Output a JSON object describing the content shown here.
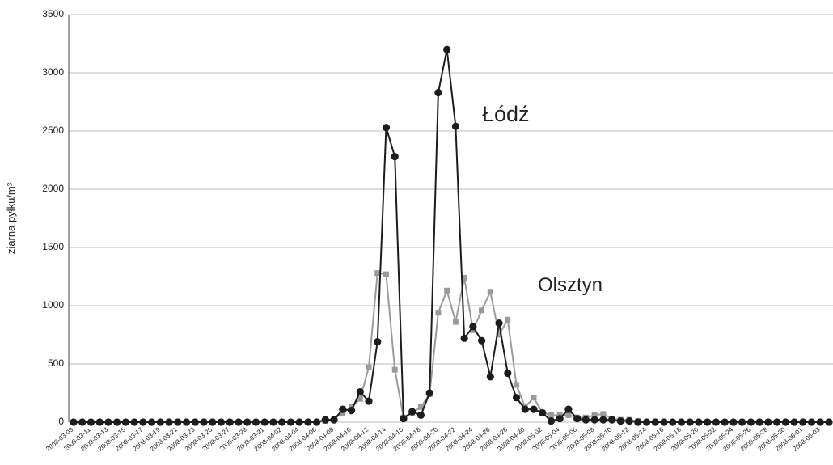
{
  "chart_data": {
    "type": "line",
    "y_label": "ziarna pyłku/m³",
    "categories": [
      "2008-03-09",
      null,
      "2008-03-11",
      null,
      "2008-03-13",
      null,
      "2008-03-15",
      null,
      "2008-03-17",
      null,
      "2008-03-19",
      null,
      "2008-03-21",
      null,
      "2008-03-23",
      null,
      "2008-03-25",
      null,
      "2008-03-27",
      null,
      "2008-03-29",
      null,
      "2008-03-31",
      null,
      "2008-04-02",
      null,
      "2008-04-04",
      null,
      "2008-04-06",
      null,
      "2008-04-08",
      null,
      "2008-04-10",
      null,
      "2008-04-12",
      null,
      "2008-04-14",
      null,
      "2008-04-16",
      null,
      "2008-04-18",
      null,
      "2008-04-20",
      null,
      "2008-04-22",
      null,
      "2008-04-24",
      null,
      "2008-04-26",
      null,
      "2008-04-28",
      null,
      "2008-04-30",
      null,
      "2008-05-02",
      null,
      "2008-05-04",
      null,
      "2008-05-06",
      null,
      "2008-05-08",
      null,
      "2008-05-10",
      null,
      "2008-05-12",
      null,
      "2008-05-14",
      null,
      "2008-05-16",
      null,
      "2008-05-18",
      null,
      "2008-05-20",
      null,
      "2008-05-22",
      null,
      "2008-05-24",
      null,
      "2008-05-26",
      null,
      "2008-05-28",
      null,
      "2008-05-30",
      null,
      "2008-06-01",
      null,
      "2008-06-03",
      null
    ],
    "series": [
      {
        "name": "Olsztyn",
        "color": "#9a9a9a",
        "marker": "square",
        "values": [
          0,
          0,
          0,
          0,
          0,
          0,
          0,
          0,
          0,
          0,
          0,
          0,
          0,
          0,
          0,
          0,
          0,
          0,
          0,
          0,
          0,
          0,
          0,
          0,
          0,
          0,
          0,
          0,
          0,
          10,
          30,
          80,
          130,
          200,
          470,
          1280,
          1270,
          450,
          40,
          80,
          130,
          240,
          940,
          1130,
          860,
          1240,
          790,
          960,
          1120,
          750,
          880,
          320,
          130,
          210,
          80,
          60,
          60,
          60,
          40,
          40,
          60,
          70,
          30,
          20,
          20,
          10,
          0,
          0,
          0,
          0,
          0,
          0,
          0,
          0,
          0,
          0,
          0,
          0,
          0,
          0,
          0,
          0,
          0,
          0,
          0,
          0,
          0,
          0
        ]
      },
      {
        "name": "Łódź",
        "color": "#1c1c1c",
        "marker": "circle",
        "values": [
          0,
          0,
          0,
          0,
          0,
          0,
          0,
          0,
          0,
          0,
          0,
          0,
          0,
          0,
          0,
          0,
          0,
          0,
          0,
          0,
          0,
          0,
          0,
          0,
          0,
          0,
          0,
          0,
          0,
          20,
          20,
          110,
          100,
          260,
          180,
          690,
          2530,
          2280,
          30,
          90,
          60,
          250,
          2830,
          3200,
          2540,
          720,
          820,
          700,
          390,
          850,
          420,
          210,
          110,
          110,
          80,
          10,
          30,
          110,
          30,
          20,
          20,
          20,
          20,
          10,
          10,
          0,
          0,
          0,
          0,
          0,
          0,
          0,
          0,
          0,
          0,
          0,
          0,
          0,
          0,
          0,
          0,
          0,
          0,
          0,
          0,
          0,
          0,
          0
        ]
      }
    ],
    "ylim": [
      0,
      3500
    ],
    "yticks": [
      0,
      500,
      1000,
      1500,
      2000,
      2500,
      3000,
      3500
    ],
    "grid": true
  }
}
